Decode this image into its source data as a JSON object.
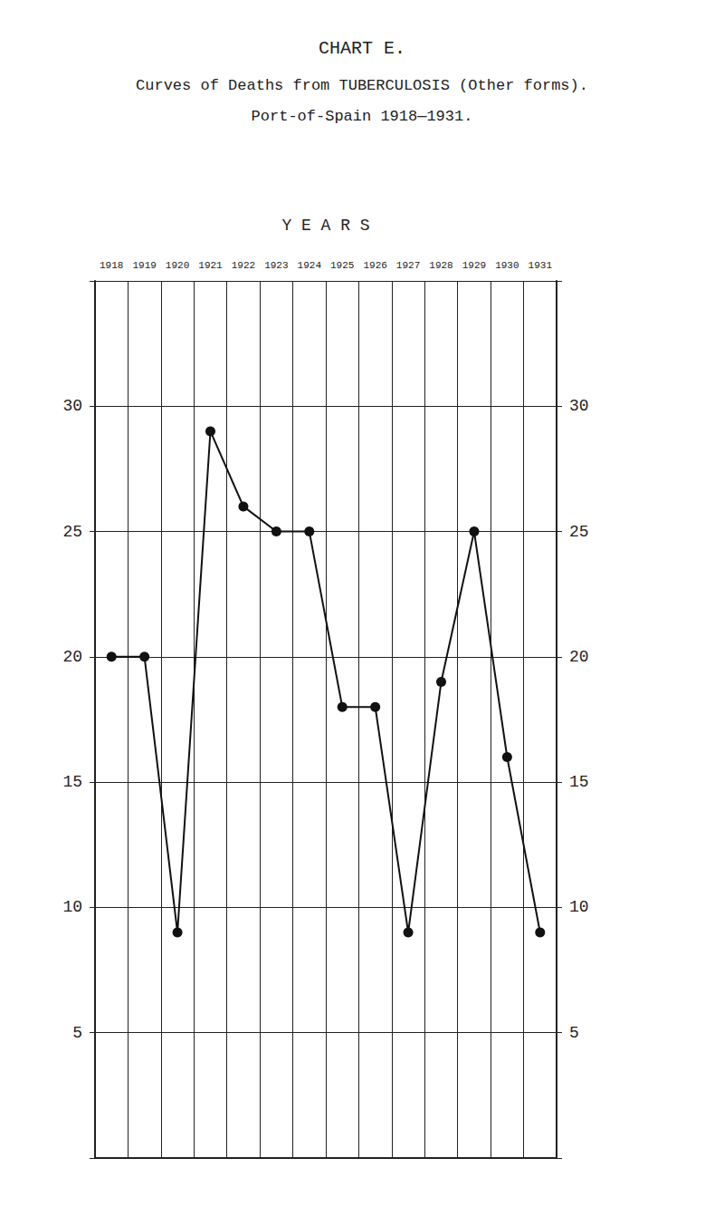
{
  "chart_data": {
    "type": "line",
    "title": "CHART E.",
    "subtitle": "Curves of Deaths from TUBERCULOSIS (Other forms).\nPort-of-Spain 1918—1931.",
    "x_label": "Y E A R S",
    "categories": [
      "1918",
      "1919",
      "1920",
      "1921",
      "1922",
      "1923",
      "1924",
      "1925",
      "1926",
      "1927",
      "1928",
      "1929",
      "1930",
      "1931"
    ],
    "values": [
      20,
      20,
      9,
      29,
      26,
      25,
      25,
      18,
      18,
      9,
      19,
      25,
      16,
      9
    ],
    "color": "#111111",
    "marker": "circle",
    "ylim": [
      0,
      35
    ],
    "yticks": [
      5,
      10,
      15,
      20,
      25,
      30
    ],
    "grid": true
  }
}
